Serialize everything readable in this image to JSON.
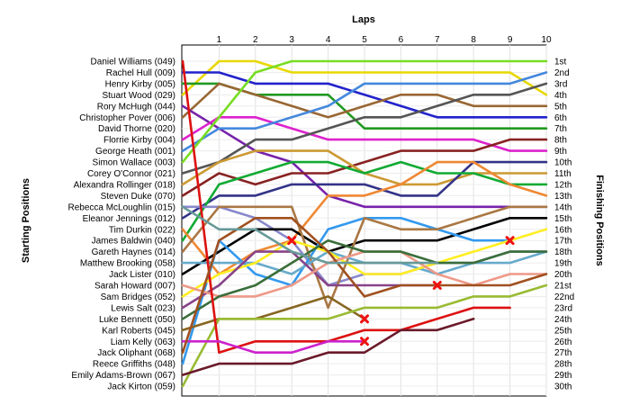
{
  "chart_data": {
    "type": "line",
    "x_axis_title": "Laps",
    "left_axis_title": "Starting Positions",
    "right_axis_title": "Finishing Positions",
    "x_ticks": [
      1,
      2,
      3,
      4,
      5,
      6,
      7,
      8,
      9,
      10
    ],
    "y_range": [
      1,
      30
    ],
    "grid": true,
    "starting_grid": [
      "Daniel Williams (049)",
      "Rachel Hull (009)",
      "Henry Kirby (005)",
      "Stuart Wood (029)",
      "Rory McHugh (044)",
      "Christopher Pover (006)",
      "David Thorne (020)",
      "Florrie Kirby (004)",
      "George Heath (001)",
      "Simon Wallace (003)",
      "Corey O'Connor (021)",
      "Alexandra Rollinger (018)",
      "Steven Duke (070)",
      "Rebecca McLoughlin (015)",
      "Eleanor Jennings (012)",
      "Tim Durkin (022)",
      "James Baldwin (040)",
      "Gareth Haynes (014)",
      "Matthew Brooking (058)",
      "Jack Lister (010)",
      "Sarah Howard (007)",
      "Sam Bridges (052)",
      "Lewis Salt (023)",
      "Luke Bennett (050)",
      "Karl Roberts (045)",
      "Liam Kelly (063)",
      "Jack Oliphant (068)",
      "Reece Griffiths (048)",
      "Emily Adams-Brown (067)",
      "Jack Kirton (059)"
    ],
    "finishing_labels": [
      "1st",
      "2nd",
      "3rd",
      "4th",
      "5th",
      "6th",
      "7th",
      "8th",
      "9th",
      "10th",
      "11th",
      "12th",
      "13th",
      "14th",
      "15th",
      "16th",
      "17th",
      "18th",
      "19th",
      "20th",
      "21st",
      "22nd",
      "23rd",
      "24th",
      "25th",
      "26th",
      "27th",
      "28th",
      "29th",
      "30th"
    ],
    "series": [
      {
        "color": "#e8d800",
        "positions": [
          4,
          1,
          1,
          2,
          2,
          2,
          2,
          2,
          2,
          2,
          4
        ]
      },
      {
        "color": "#2222cc",
        "positions": [
          2,
          2,
          3,
          3,
          3,
          4,
          5,
          6,
          6,
          6,
          6
        ]
      },
      {
        "color": "#229922",
        "positions": [
          3,
          3,
          4,
          4,
          4,
          7,
          7,
          7,
          7,
          7,
          7
        ]
      },
      {
        "color": "#996633",
        "positions": [
          6,
          3,
          4,
          5,
          6,
          5,
          4,
          4,
          5,
          5,
          5
        ]
      },
      {
        "color": "#7722aa",
        "positions": [
          5,
          7,
          9,
          10,
          13,
          14,
          14,
          14,
          14,
          14,
          14
        ]
      },
      {
        "color": "#dd22cc",
        "positions": [
          8,
          6,
          6,
          7,
          8,
          8,
          8,
          8,
          8,
          9,
          9
        ]
      },
      {
        "color": "#555555",
        "positions": [
          11,
          10,
          8,
          8,
          7,
          6,
          6,
          5,
          4,
          4,
          3
        ]
      },
      {
        "color": "#4488dd",
        "positions": [
          9,
          7,
          7,
          6,
          5,
          3,
          3,
          3,
          3,
          3,
          2
        ]
      },
      {
        "color": "#77dd22",
        "positions": [
          10,
          6,
          2,
          1,
          1,
          1,
          1,
          1,
          1,
          1,
          1
        ]
      },
      {
        "color": "#882222",
        "positions": [
          13,
          11,
          12,
          11,
          11,
          10,
          9,
          9,
          9,
          8,
          8
        ]
      },
      {
        "color": "#cc9933",
        "positions": [
          12,
          10,
          9,
          9,
          9,
          11,
          12,
          12,
          11,
          11,
          11
        ]
      },
      {
        "color": "#333388",
        "positions": [
          15,
          13,
          13,
          12,
          12,
          12,
          13,
          13,
          10,
          10,
          10
        ]
      },
      {
        "color": "#11aa33",
        "positions": [
          17,
          12,
          11,
          10,
          10,
          11,
          10,
          11,
          11,
          12,
          12
        ]
      },
      {
        "color": "#ee8833",
        "positions": [
          16,
          20,
          18,
          17,
          13,
          13,
          12,
          10,
          10,
          12,
          13
        ]
      },
      {
        "color": "#8888cc",
        "positions": [
          14,
          14,
          15,
          17,
          21,
          20,
          20,
          19,
          19,
          18,
          18
        ]
      },
      {
        "color": "#000000",
        "positions": [
          20,
          18,
          16,
          16,
          18,
          17,
          17,
          17,
          16,
          15,
          15
        ]
      },
      {
        "color": "#3399ee",
        "positions": [
          28,
          17,
          20,
          21,
          16,
          15,
          15,
          16,
          17,
          17
        ]
      },
      {
        "color": "#aa7744",
        "positions": [
          18,
          14,
          14,
          14,
          23,
          15,
          16,
          16,
          15,
          14,
          14
        ]
      },
      {
        "color": "#66aacc",
        "positions": [
          19,
          19,
          19,
          20,
          18,
          19,
          19,
          20,
          19,
          19,
          18
        ]
      },
      {
        "color": "#ffee22",
        "positions": [
          22,
          20,
          19,
          17,
          18,
          20,
          20,
          19,
          18,
          17,
          16
        ]
      },
      {
        "color": "#884488",
        "positions": [
          23,
          21,
          18,
          18,
          21,
          21,
          21,
          21
        ]
      },
      {
        "color": "#ee9988",
        "positions": [
          21,
          22,
          22,
          21,
          19,
          18,
          18,
          20,
          21,
          20,
          20
        ]
      },
      {
        "color": "#3a6e3a",
        "positions": [
          24,
          22,
          21,
          19,
          17,
          18,
          18,
          19,
          19,
          18,
          18
        ]
      },
      {
        "color": "#886622",
        "positions": [
          25,
          24,
          24,
          23,
          22,
          24
        ]
      },
      {
        "color": "#99bb33",
        "positions": [
          30,
          24,
          24,
          24,
          24,
          23,
          23,
          23,
          22,
          22,
          21
        ]
      },
      {
        "color": "#dd1111",
        "positions": [
          1,
          27,
          26,
          26,
          26,
          25,
          25,
          24,
          23,
          23
        ]
      },
      {
        "color": "#cc22cc",
        "positions": [
          26,
          26,
          27,
          27,
          26,
          26
        ]
      },
      {
        "color": "#a05020",
        "positions": [
          27,
          17,
          15,
          15,
          18,
          22,
          21,
          21,
          21,
          21,
          20
        ]
      },
      {
        "color": "#6a1a2a",
        "positions": [
          29,
          28,
          28,
          28,
          27,
          27,
          25,
          25,
          24
        ]
      },
      {
        "color": "#669999",
        "positions": [
          14,
          16,
          16,
          18,
          19,
          19,
          19,
          19
        ]
      }
    ],
    "retirements": [
      {
        "lap": 3,
        "position": 17
      },
      {
        "lap": 5,
        "position": 24
      },
      {
        "lap": 5,
        "position": 26
      },
      {
        "lap": 7,
        "position": 21
      },
      {
        "lap": 9,
        "position": 17
      }
    ]
  }
}
